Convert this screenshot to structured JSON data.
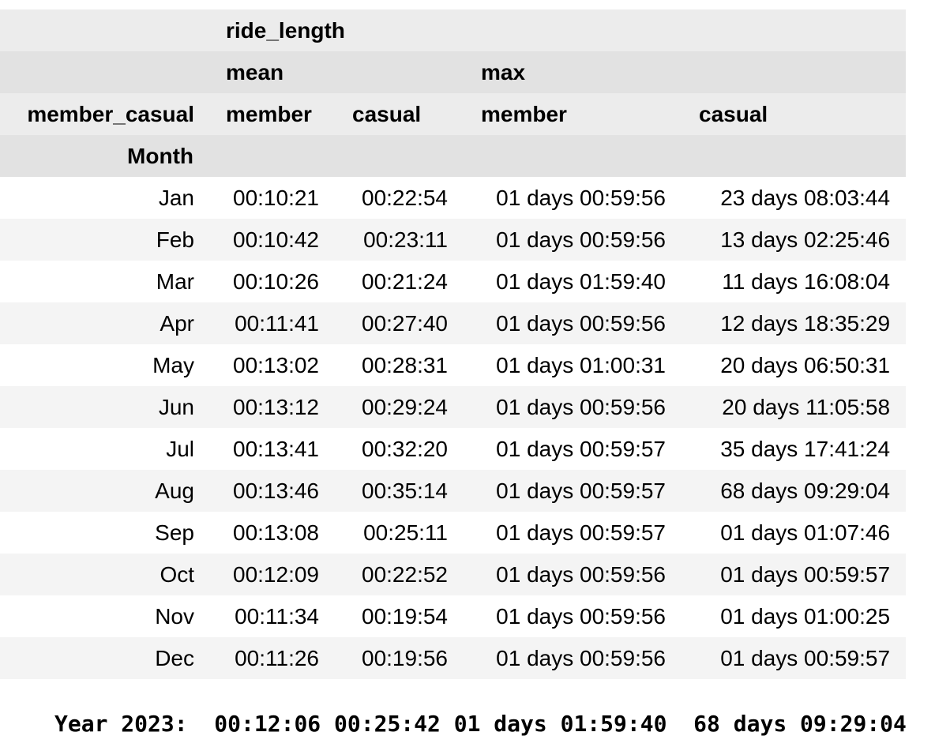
{
  "header": {
    "level0": "ride_length",
    "level1": [
      "mean",
      "max"
    ],
    "index_name": "member_casual",
    "row_index_name": "Month",
    "level2": [
      "member",
      "casual",
      "member",
      "casual"
    ]
  },
  "rows": [
    {
      "month": "Jan",
      "mean_member": "00:10:21",
      "mean_casual": "00:22:54",
      "max_member": "01 days 00:59:56",
      "max_casual": "23 days 08:03:44"
    },
    {
      "month": "Feb",
      "mean_member": "00:10:42",
      "mean_casual": "00:23:11",
      "max_member": "01 days 00:59:56",
      "max_casual": "13 days 02:25:46"
    },
    {
      "month": "Mar",
      "mean_member": "00:10:26",
      "mean_casual": "00:21:24",
      "max_member": "01 days 01:59:40",
      "max_casual": "11 days 16:08:04"
    },
    {
      "month": "Apr",
      "mean_member": "00:11:41",
      "mean_casual": "00:27:40",
      "max_member": "01 days 00:59:56",
      "max_casual": "12 days 18:35:29"
    },
    {
      "month": "May",
      "mean_member": "00:13:02",
      "mean_casual": "00:28:31",
      "max_member": "01 days 01:00:31",
      "max_casual": "20 days 06:50:31"
    },
    {
      "month": "Jun",
      "mean_member": "00:13:12",
      "mean_casual": "00:29:24",
      "max_member": "01 days 00:59:56",
      "max_casual": "20 days 11:05:58"
    },
    {
      "month": "Jul",
      "mean_member": "00:13:41",
      "mean_casual": "00:32:20",
      "max_member": "01 days 00:59:57",
      "max_casual": "35 days 17:41:24"
    },
    {
      "month": "Aug",
      "mean_member": "00:13:46",
      "mean_casual": "00:35:14",
      "max_member": "01 days 00:59:57",
      "max_casual": "68 days 09:29:04"
    },
    {
      "month": "Sep",
      "mean_member": "00:13:08",
      "mean_casual": "00:25:11",
      "max_member": "01 days 00:59:57",
      "max_casual": "01 days 01:07:46"
    },
    {
      "month": "Oct",
      "mean_member": "00:12:09",
      "mean_casual": "00:22:52",
      "max_member": "01 days 00:59:56",
      "max_casual": "01 days 00:59:57"
    },
    {
      "month": "Nov",
      "mean_member": "00:11:34",
      "mean_casual": "00:19:54",
      "max_member": "01 days 00:59:56",
      "max_casual": "01 days 01:00:25"
    },
    {
      "month": "Dec",
      "mean_member": "00:11:26",
      "mean_casual": "00:19:56",
      "max_member": "01 days 00:59:56",
      "max_casual": "01 days 00:59:57"
    }
  ],
  "summary": {
    "label": "Year 2023:",
    "mean_member": "00:12:06",
    "mean_casual": "00:25:42",
    "max_member": "01 days 01:59:40",
    "max_casual": "68 days 09:29:04"
  }
}
